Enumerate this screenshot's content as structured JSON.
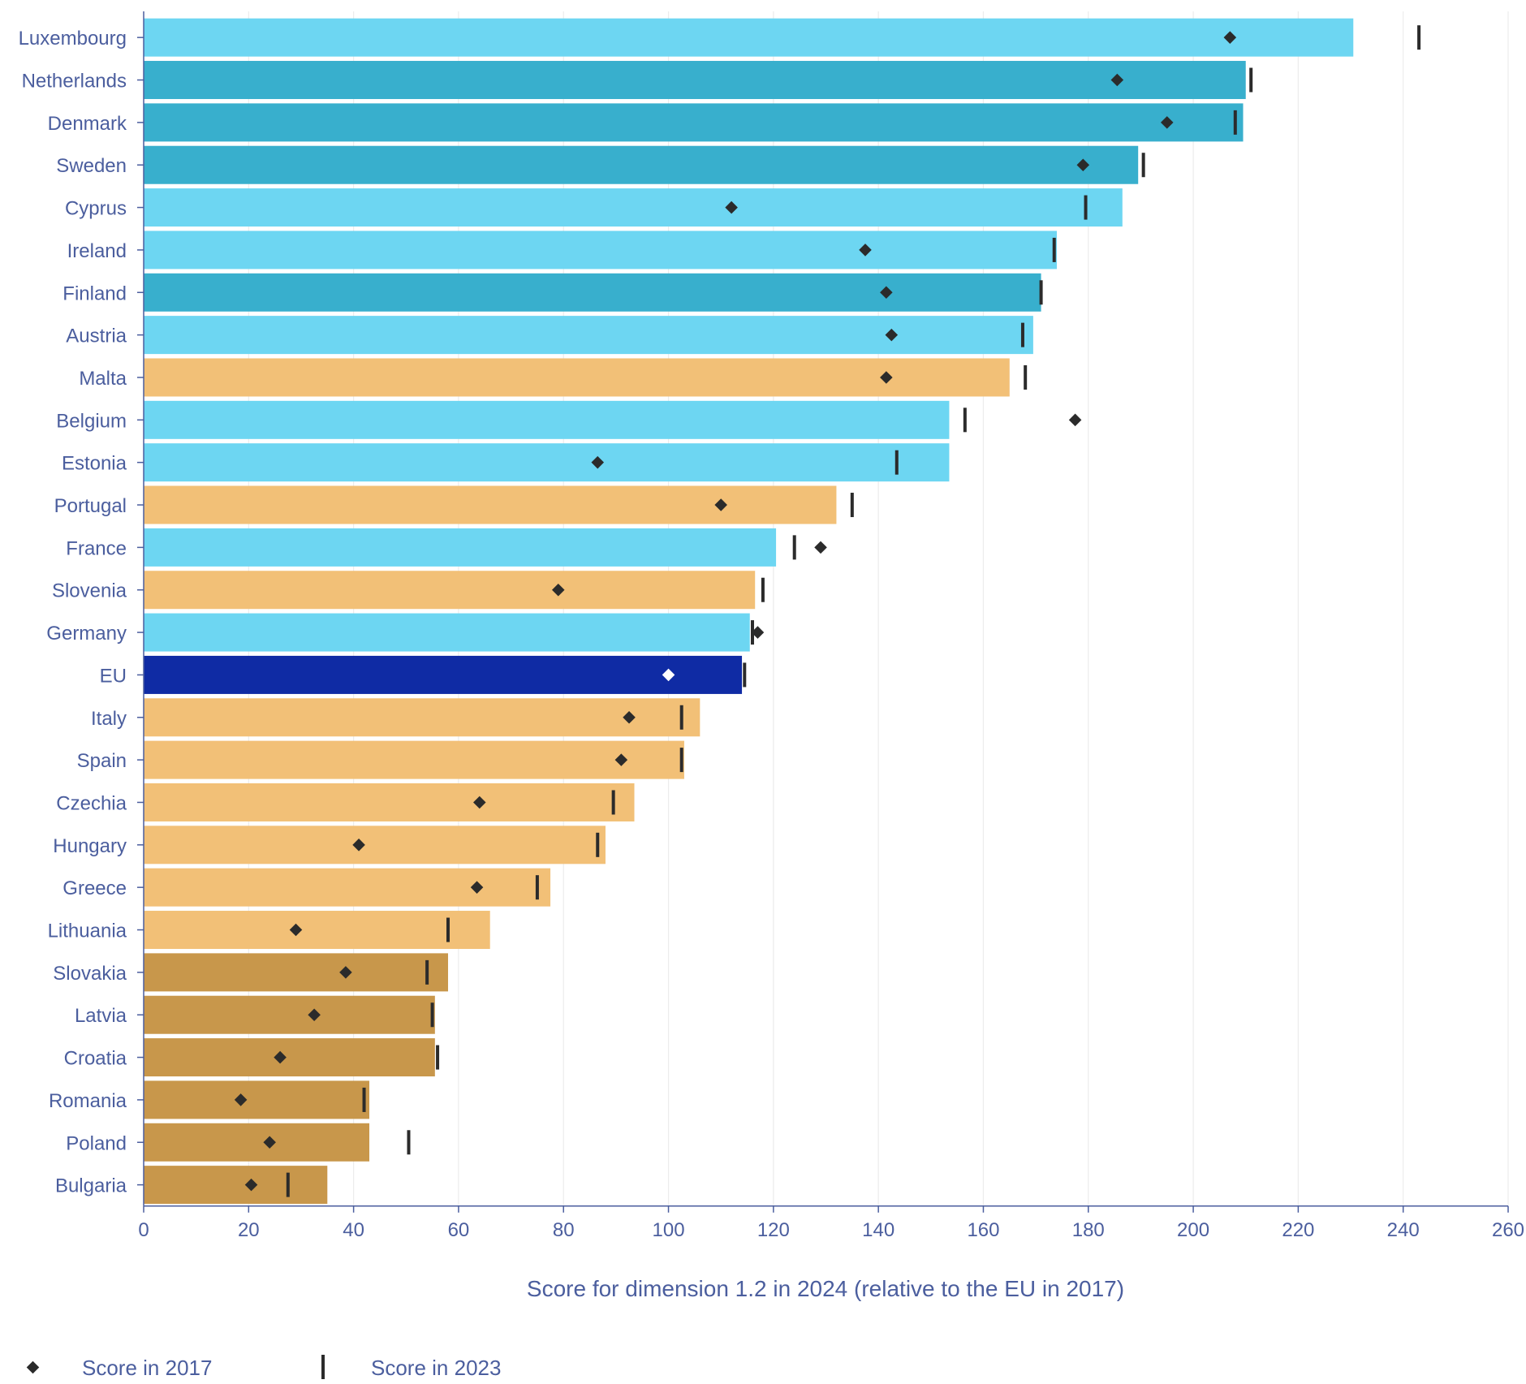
{
  "chart_data": {
    "type": "bar",
    "orientation": "horizontal",
    "title": "",
    "xlabel": "Score for dimension 1.2 in 2024 (relative to the EU in 2017)",
    "ylabel": "",
    "xlim": [
      0,
      260
    ],
    "xticks": [
      0,
      20,
      40,
      60,
      80,
      100,
      120,
      140,
      160,
      180,
      200,
      220,
      240,
      260
    ],
    "grid": "vertical",
    "legend_position": "bottom-left",
    "colors": {
      "high": "#38afcd",
      "above": "#6dd6f2",
      "below": "#f2c077",
      "low": "#c8974b",
      "eu": "#0f2ba4",
      "marker": "#2b2b2b",
      "eu_marker": "#ffffff",
      "text": "#4b5e9e",
      "grid": "#ececec"
    },
    "categories": [
      "Luxembourg",
      "Netherlands",
      "Denmark",
      "Sweden",
      "Cyprus",
      "Ireland",
      "Finland",
      "Austria",
      "Malta",
      "Belgium",
      "Estonia",
      "Portugal",
      "France",
      "Slovenia",
      "Germany",
      "EU",
      "Italy",
      "Spain",
      "Czechia",
      "Hungary",
      "Greece",
      "Lithuania",
      "Slovakia",
      "Latvia",
      "Croatia",
      "Romania",
      "Poland",
      "Bulgaria"
    ],
    "groups": [
      "above",
      "high",
      "high",
      "high",
      "above",
      "above",
      "high",
      "above",
      "below",
      "above",
      "above",
      "below",
      "above",
      "below",
      "above",
      "eu",
      "below",
      "below",
      "below",
      "below",
      "below",
      "below",
      "low",
      "low",
      "low",
      "low",
      "low",
      "low"
    ],
    "series": [
      {
        "name": "",
        "kind": "bar",
        "values": [
          230.5,
          210,
          209.5,
          189.5,
          186.5,
          174,
          171,
          169.5,
          165,
          153.5,
          153.5,
          132,
          120.5,
          116.5,
          115.5,
          114,
          106,
          103,
          93.5,
          88,
          77.5,
          66,
          58,
          55.5,
          55.5,
          43,
          43,
          35
        ]
      },
      {
        "name": "Score in 2017",
        "kind": "diamond",
        "values": [
          207,
          185.5,
          195,
          179,
          112,
          137.5,
          141.5,
          142.5,
          141.5,
          177.5,
          86.5,
          110,
          129,
          79,
          117,
          100,
          92.5,
          91,
          64,
          41,
          63.5,
          29,
          38.5,
          32.5,
          26,
          18.5,
          24,
          20.5
        ]
      },
      {
        "name": "Score in 2023",
        "kind": "tick",
        "values": [
          243,
          211,
          208,
          190.5,
          179.5,
          173.5,
          171,
          167.5,
          168,
          156.5,
          143.5,
          135,
          124,
          118,
          116,
          114.5,
          102.5,
          102.5,
          89.5,
          86.5,
          75,
          58,
          54,
          55,
          56,
          42,
          50.5,
          27.5
        ]
      }
    ]
  }
}
